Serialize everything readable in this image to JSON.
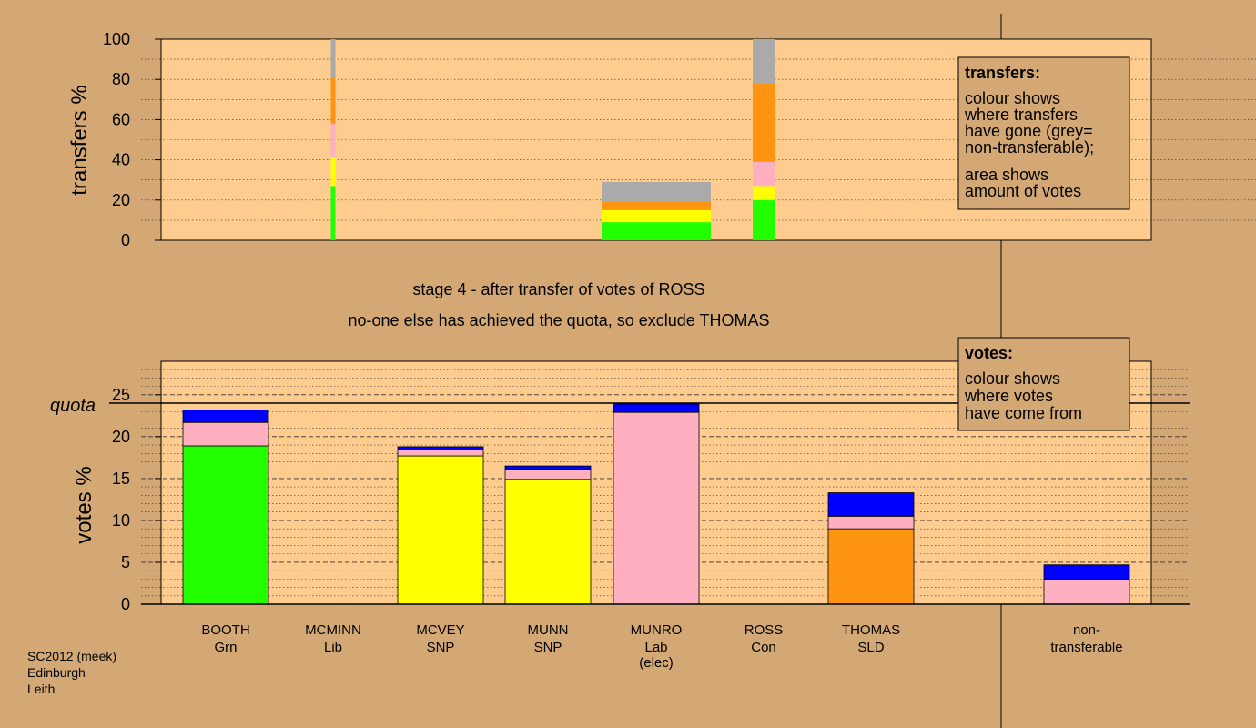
{
  "stage_title": "stage 4 - after transfer of votes of ROSS",
  "stage_subtitle": "no-one else has achieved the quota, so exclude THOMAS",
  "footer": [
    "SC2012 (meek)",
    "Edinburgh",
    "Leith"
  ],
  "colors": {
    "green": "#22ff00",
    "yellow": "#ffff00",
    "pink": "#ffb0c0",
    "orange": "#ff9410",
    "blue": "#0000ff",
    "grey": "#aaaaaa",
    "plot_bg": "#ffcc90",
    "page_bg": "#d4a874"
  },
  "chart_data": [
    {
      "type": "bar",
      "ylabel": "transfers %",
      "ylim": [
        0,
        100
      ],
      "yticks": [
        0,
        20,
        40,
        60,
        80,
        100
      ],
      "legend": {
        "title": "transfers:",
        "lines": [
          "colour shows",
          "where transfers",
          "have gone (grey=",
          "non-transferable);",
          "area shows",
          "amount of votes"
        ]
      },
      "categories": [
        "BOOTH",
        "MCMINN",
        "MCVEY",
        "MUNN",
        "MUNRO",
        "ROSS",
        "THOMAS",
        "non-transferable"
      ],
      "bars": [
        {
          "candidate": "MCMINN",
          "segments": [
            {
              "color": "green",
              "value": 27
            },
            {
              "color": "yellow",
              "value": 14
            },
            {
              "color": "pink",
              "value": 17
            },
            {
              "color": "orange",
              "value": 23
            },
            {
              "color": "grey",
              "value": 19
            }
          ]
        },
        {
          "candidate": "MUNRO",
          "segments": [
            {
              "color": "green",
              "value": 9
            },
            {
              "color": "yellow",
              "value": 6
            },
            {
              "color": "orange",
              "value": 4
            },
            {
              "color": "grey",
              "value": 10
            }
          ]
        },
        {
          "candidate": "ROSS",
          "segments": [
            {
              "color": "green",
              "value": 20
            },
            {
              "color": "yellow",
              "value": 7
            },
            {
              "color": "pink",
              "value": 12
            },
            {
              "color": "orange",
              "value": 39
            },
            {
              "color": "grey",
              "value": 22
            }
          ]
        }
      ]
    },
    {
      "type": "bar",
      "ylabel": "votes %",
      "ylim": [
        0,
        29
      ],
      "yticks": [
        0,
        5,
        10,
        15,
        20,
        25
      ],
      "quota": 24,
      "quota_label": "quota",
      "legend": {
        "title": "votes:",
        "lines": [
          "colour shows",
          "where votes",
          "have come from"
        ]
      },
      "categories": [
        {
          "name": "BOOTH",
          "party": "Grn"
        },
        {
          "name": "MCMINN",
          "party": "Lib"
        },
        {
          "name": "MCVEY",
          "party": "SNP"
        },
        {
          "name": "MUNN",
          "party": "SNP"
        },
        {
          "name": "MUNRO",
          "party": "Lab",
          "note": "(elec)"
        },
        {
          "name": "ROSS",
          "party": "Con"
        },
        {
          "name": "THOMAS",
          "party": "SLD"
        },
        {
          "name": "non-",
          "party": "transferable"
        }
      ],
      "bars": [
        {
          "candidate": "BOOTH",
          "segments": [
            {
              "color": "green",
              "value": 18.9
            },
            {
              "color": "pink",
              "value": 2.8
            },
            {
              "color": "blue",
              "value": 1.5
            }
          ]
        },
        {
          "candidate": "MCMINN",
          "segments": []
        },
        {
          "candidate": "MCVEY",
          "segments": [
            {
              "color": "yellow",
              "value": 17.7
            },
            {
              "color": "pink",
              "value": 0.7
            },
            {
              "color": "blue",
              "value": 0.4
            }
          ]
        },
        {
          "candidate": "MUNN",
          "segments": [
            {
              "color": "yellow",
              "value": 14.9
            },
            {
              "color": "pink",
              "value": 1.2
            },
            {
              "color": "blue",
              "value": 0.4
            }
          ]
        },
        {
          "candidate": "MUNRO",
          "segments": [
            {
              "color": "pink",
              "value": 22.9
            },
            {
              "color": "blue",
              "value": 1.0
            }
          ]
        },
        {
          "candidate": "ROSS",
          "segments": []
        },
        {
          "candidate": "THOMAS",
          "segments": [
            {
              "color": "orange",
              "value": 9.0
            },
            {
              "color": "pink",
              "value": 1.5
            },
            {
              "color": "blue",
              "value": 2.8
            }
          ]
        },
        {
          "candidate": "non-transferable",
          "segments": [
            {
              "color": "pink",
              "value": 3.0
            },
            {
              "color": "blue",
              "value": 1.7
            }
          ]
        }
      ]
    }
  ]
}
